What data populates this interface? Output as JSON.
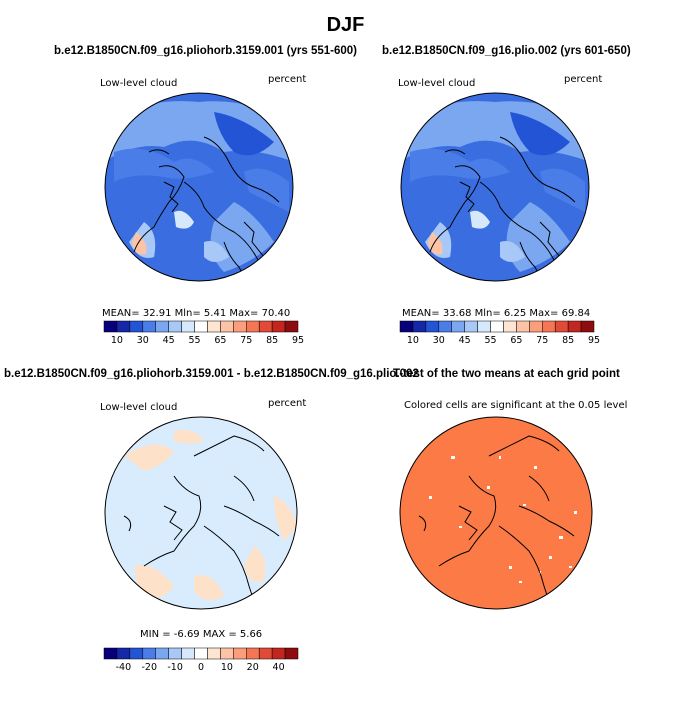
{
  "title": "DJF",
  "panels": [
    {
      "id": "p1",
      "heading": "b.e12.B1850CN.f09_g16.pliohorb.3159.001 (yrs 551-600)",
      "left_label": "Low-level cloud",
      "right_label": "percent",
      "stats": "MEAN=   32.91   Mln=    5.41   Max=   70.40",
      "colorbar_labels": [
        "10",
        "30",
        "45",
        "55",
        "65",
        "75",
        "85",
        "95"
      ],
      "colors": {
        "land_bg": "#2f5fd8",
        "accent": "#f7b7a1"
      }
    },
    {
      "id": "p2",
      "heading": "b.e12.B1850CN.f09_g16.plio.002 (yrs 601-650)",
      "left_label": "Low-level cloud",
      "right_label": "percent",
      "stats": "MEAN=   33.68   Mln=    6.25   Max=   69.84",
      "colorbar_labels": [
        "10",
        "30",
        "45",
        "55",
        "65",
        "75",
        "85",
        "95"
      ],
      "colors": {
        "land_bg": "#2f5fd8",
        "accent": "#f7b7a1"
      }
    },
    {
      "id": "p3",
      "heading": "b.e12.B1850CN.f09_g16.pliohorb.3159.001 - b.e12.B1850CN.f09_g16.plio.002",
      "left_label": "Low-level cloud",
      "right_label": "percent",
      "stats": "MIN =   -6.69  MAX =    5.66",
      "colorbar_labels": [
        "-40",
        "-20",
        "-10",
        "0",
        "10",
        "20",
        "40"
      ],
      "colors": {
        "land_bg": "#d9ecfd",
        "accent": "#fde1c8"
      }
    },
    {
      "id": "p4",
      "heading": "T-test of the two means at each grid point",
      "left_label": "Colored cells are significant at the 0.05 level",
      "colors": {
        "land_bg": "#fb7a45"
      }
    }
  ],
  "colorbar_colors": [
    "#08007a",
    "#1428a8",
    "#2454d6",
    "#4a7de8",
    "#7aa7f0",
    "#a8c8f7",
    "#d6e8fc",
    "#ffffff",
    "#fde5d2",
    "#fcc3a6",
    "#fb9e7c",
    "#f47655",
    "#e04a36",
    "#c2261f",
    "#8e0b10"
  ],
  "diff_colorbar_colors": [
    "#08007a",
    "#1428a8",
    "#2454d6",
    "#4a7de8",
    "#7aa7f0",
    "#a8c8f7",
    "#d6e8fc",
    "#ffffff",
    "#fde5d2",
    "#fcc3a6",
    "#fb9e7c",
    "#f47655",
    "#e04a36",
    "#c2261f",
    "#8e0b10"
  ]
}
